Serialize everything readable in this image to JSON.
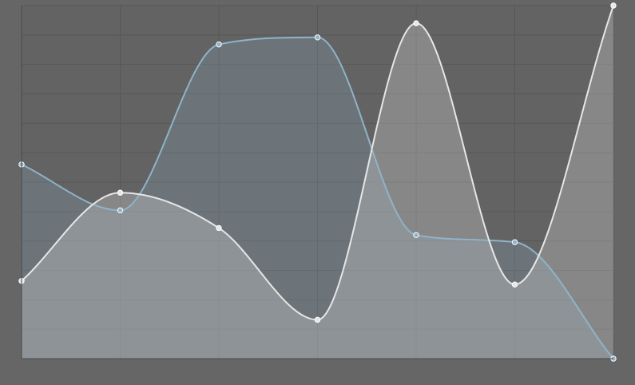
{
  "chart_data": {
    "type": "area",
    "title": "",
    "xlabel": "",
    "ylabel": "",
    "categories": [
      "",
      "",
      "",
      "",
      "",
      "",
      ""
    ],
    "ylim": [
      0,
      100
    ],
    "grid": true,
    "series": [
      {
        "values": [
          55,
          42,
          89,
          91,
          35,
          33,
          0
        ],
        "color": "#8fb3c9"
      },
      {
        "values": [
          22,
          47,
          37,
          11,
          95,
          21,
          100
        ],
        "color": "#e6e6e6"
      }
    ]
  }
}
